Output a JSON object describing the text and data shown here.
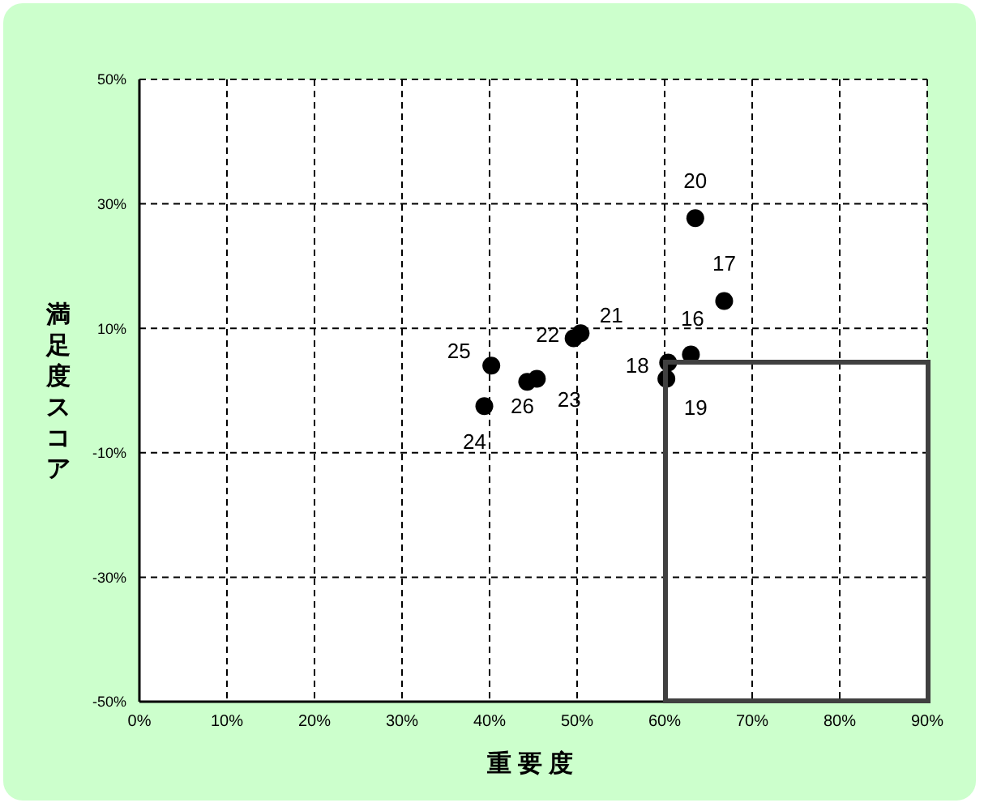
{
  "chart_data": {
    "type": "scatter",
    "xlabel": "重要度",
    "ylabel": "満足度スコア",
    "x": [
      63.0,
      66.8,
      60.4,
      60.2,
      63.5,
      50.4,
      49.6,
      45.4,
      39.4,
      40.2,
      44.3
    ],
    "values": [
      5.8,
      14.4,
      4.5,
      1.9,
      27.7,
      9.2,
      8.4,
      1.9,
      -2.5,
      4.0,
      1.4
    ],
    "annotations": [
      {
        "text": "16",
        "x": 63.0,
        "y": 5.8
      },
      {
        "text": "17",
        "x": 66.8,
        "y": 14.4
      },
      {
        "text": "18",
        "x": 60.4,
        "y": 4.5
      },
      {
        "text": "19",
        "x": 60.2,
        "y": 1.9
      },
      {
        "text": "20",
        "x": 63.5,
        "y": 27.7
      },
      {
        "text": "21",
        "x": 50.4,
        "y": 9.2
      },
      {
        "text": "22",
        "x": 49.6,
        "y": 8.4
      },
      {
        "text": "23",
        "x": 45.4,
        "y": 1.9
      },
      {
        "text": "24",
        "x": 39.4,
        "y": -2.5
      },
      {
        "text": "25",
        "x": 40.2,
        "y": 4.0
      },
      {
        "text": "26",
        "x": 44.3,
        "y": 1.4
      }
    ],
    "color": "#000000",
    "marker": "circle",
    "grid": true,
    "legend": false,
    "xlim": [
      0,
      90
    ],
    "xticks": [
      {
        "value": 0,
        "label": "0%"
      },
      {
        "value": 10,
        "label": "10%"
      },
      {
        "value": 20,
        "label": "20%"
      },
      {
        "value": 30,
        "label": "30%"
      },
      {
        "value": 40,
        "label": "40%"
      },
      {
        "value": 50,
        "label": "50%"
      },
      {
        "value": 60,
        "label": "60%"
      },
      {
        "value": 70,
        "label": "70%"
      },
      {
        "value": 80,
        "label": "80%"
      },
      {
        "value": 90,
        "label": "90%"
      }
    ],
    "ylim": [
      -50,
      50
    ],
    "yticks": [
      {
        "value": -50,
        "label": "-50%"
      },
      {
        "value": -30,
        "label": "-30%"
      },
      {
        "value": -10,
        "label": "-10%"
      },
      {
        "value": 10,
        "label": "10%"
      },
      {
        "value": 30,
        "label": "30%"
      },
      {
        "value": 50,
        "label": "50%"
      }
    ]
  }
}
